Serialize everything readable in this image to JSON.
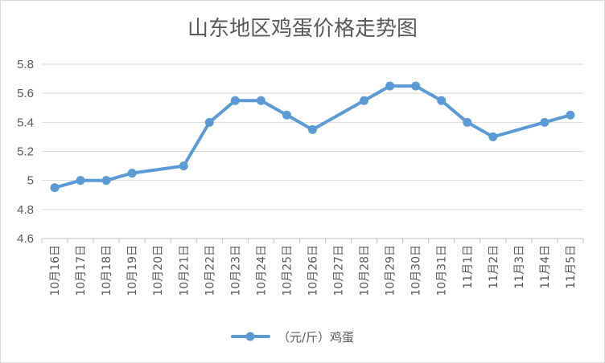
{
  "chart_data": {
    "type": "line",
    "title": "山东地区鸡蛋价格走势图",
    "xlabel": "",
    "ylabel": "",
    "categories": [
      "10月16日",
      "10月17日",
      "10月18日",
      "10月19日",
      "10月20日",
      "10月21日",
      "10月22日",
      "10月23日",
      "10月24日",
      "10月25日",
      "10月26日",
      "10月27日",
      "10月28日",
      "10月29日",
      "10月30日",
      "10月31日",
      "11月1日",
      "11月2日",
      "11月3日",
      "11月4日",
      "11月5日"
    ],
    "series": [
      {
        "name": "（元/斤）鸡蛋",
        "color": "#5b9bd5",
        "values": [
          4.95,
          5.0,
          5.0,
          5.05,
          null,
          5.1,
          5.4,
          5.55,
          5.55,
          5.45,
          5.35,
          null,
          5.55,
          5.65,
          5.65,
          5.55,
          5.4,
          5.3,
          null,
          5.4,
          5.45
        ]
      }
    ],
    "ylim": [
      4.6,
      5.8
    ],
    "yticks": [
      "4.6",
      "4.8",
      "5",
      "5.2",
      "5.4",
      "5.6",
      "5.8"
    ],
    "grid": true,
    "legend_position": "bottom"
  }
}
